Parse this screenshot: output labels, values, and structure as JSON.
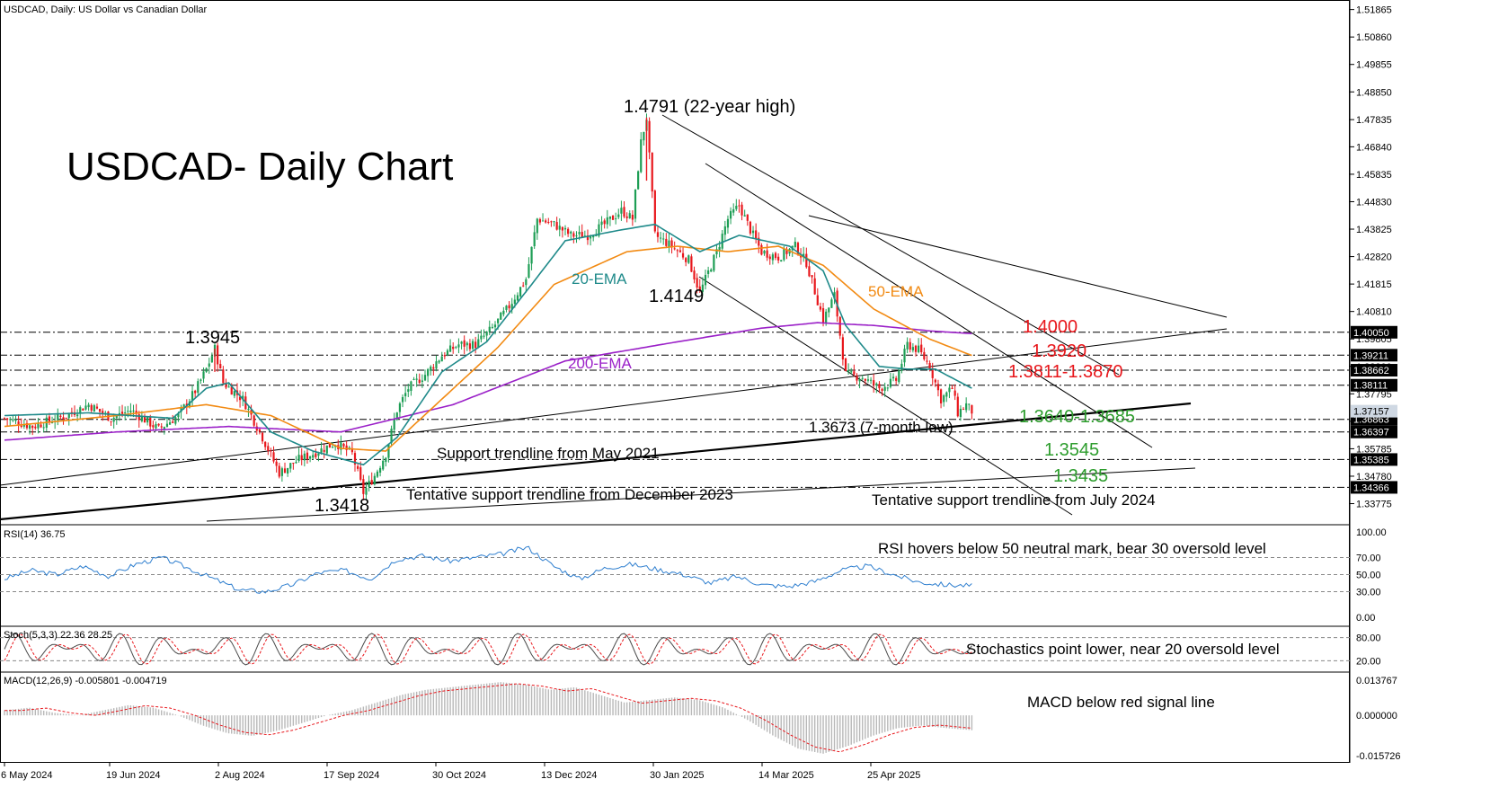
{
  "colors": {
    "bull": "#1e9e55",
    "bear": "#e8171c",
    "ema20": "#1f8a8a",
    "ema50": "#f28a12",
    "ema200": "#9b21c8",
    "rsi": "#2f7fcf",
    "stoch_main": "#4a4a4a",
    "stoch_signal": "#e8171c",
    "macd_hist": "#b8b8b8",
    "macd_signal": "#e8171c",
    "resistance_text": "#e8171c",
    "support_text": "#2d9d2d",
    "price_tag_bg": "#000000",
    "current_price_bg": "#cfd8e3"
  },
  "header": {
    "symbol_line": "USDCAD, Daily:  US Dollar vs Canadian Dollar",
    "chart_title": "USDCAD- Daily Chart"
  },
  "chart_data": [
    {
      "type": "candlestick",
      "title": "USDCAD- Daily Chart",
      "subtitle": "USDCAD, Daily:  US Dollar vs Canadian Dollar",
      "y_ticks": [
        "1.51865",
        "1.50860",
        "1.49855",
        "1.48850",
        "1.47835",
        "1.46840",
        "1.45835",
        "1.44830",
        "1.43825",
        "1.42820",
        "1.41815",
        "1.40810",
        "1.39805",
        "1.38800",
        "1.37795",
        "1.36790",
        "1.35785",
        "1.34780",
        "1.33775"
      ],
      "ylim": [
        1.332,
        1.5205
      ],
      "x_ticks": [
        "6 May 2024",
        "19 Jun 2024",
        "2 Aug 2024",
        "17 Sep 2024",
        "30 Oct 2024",
        "13 Dec 2024",
        "30 Jan 2025",
        "14 Mar 2025",
        "25 Apr 2025"
      ],
      "price_path": [
        [
          0,
          1.369
        ],
        [
          10,
          1.366
        ],
        [
          22,
          1.37
        ],
        [
          30,
          1.374
        ],
        [
          38,
          1.369
        ],
        [
          45,
          1.372
        ],
        [
          55,
          1.365
        ],
        [
          62,
          1.37
        ],
        [
          68,
          1.379
        ],
        [
          72,
          1.387
        ],
        [
          75,
          1.3945
        ],
        [
          78,
          1.382
        ],
        [
          85,
          1.376
        ],
        [
          92,
          1.362
        ],
        [
          98,
          1.349
        ],
        [
          105,
          1.354
        ],
        [
          110,
          1.356
        ],
        [
          118,
          1.36
        ],
        [
          124,
          1.356
        ],
        [
          128,
          1.3418
        ],
        [
          132,
          1.348
        ],
        [
          136,
          1.356
        ],
        [
          140,
          1.372
        ],
        [
          144,
          1.38
        ],
        [
          150,
          1.385
        ],
        [
          156,
          1.392
        ],
        [
          162,
          1.396
        ],
        [
          168,
          1.396
        ],
        [
          174,
          1.402
        ],
        [
          180,
          1.41
        ],
        [
          186,
          1.42
        ],
        [
          190,
          1.442
        ],
        [
          196,
          1.44
        ],
        [
          202,
          1.436
        ],
        [
          208,
          1.436
        ],
        [
          214,
          1.44
        ],
        [
          220,
          1.445
        ],
        [
          224,
          1.442
        ],
        [
          227,
          1.47
        ],
        [
          229,
          1.4791
        ],
        [
          232,
          1.436
        ],
        [
          238,
          1.432
        ],
        [
          244,
          1.427
        ],
        [
          248,
          1.4149
        ],
        [
          254,
          1.43
        ],
        [
          258,
          1.442
        ],
        [
          262,
          1.447
        ],
        [
          266,
          1.438
        ],
        [
          270,
          1.43
        ],
        [
          276,
          1.428
        ],
        [
          282,
          1.432
        ],
        [
          286,
          1.426
        ],
        [
          292,
          1.405
        ],
        [
          296,
          1.414
        ],
        [
          300,
          1.385
        ],
        [
          306,
          1.384
        ],
        [
          312,
          1.38
        ],
        [
          318,
          1.383
        ],
        [
          322,
          1.396
        ],
        [
          326,
          1.394
        ],
        [
          330,
          1.388
        ],
        [
          334,
          1.376
        ],
        [
          338,
          1.38
        ],
        [
          340,
          1.371
        ],
        [
          343,
          1.374
        ],
        [
          345,
          1.3716
        ]
      ],
      "ema20_path": [
        [
          0,
          1.37
        ],
        [
          30,
          1.371
        ],
        [
          60,
          1.369
        ],
        [
          72,
          1.38
        ],
        [
          80,
          1.382
        ],
        [
          95,
          1.364
        ],
        [
          110,
          1.357
        ],
        [
          128,
          1.352
        ],
        [
          140,
          1.362
        ],
        [
          156,
          1.386
        ],
        [
          172,
          1.397
        ],
        [
          188,
          1.418
        ],
        [
          200,
          1.434
        ],
        [
          220,
          1.438
        ],
        [
          232,
          1.44
        ],
        [
          248,
          1.43
        ],
        [
          262,
          1.436
        ],
        [
          280,
          1.432
        ],
        [
          292,
          1.423
        ],
        [
          300,
          1.403
        ],
        [
          312,
          1.388
        ],
        [
          322,
          1.387
        ],
        [
          332,
          1.387
        ],
        [
          345,
          1.38
        ]
      ],
      "ema50_path": [
        [
          0,
          1.366
        ],
        [
          40,
          1.37
        ],
        [
          72,
          1.374
        ],
        [
          95,
          1.37
        ],
        [
          120,
          1.358
        ],
        [
          136,
          1.357
        ],
        [
          156,
          1.376
        ],
        [
          176,
          1.395
        ],
        [
          196,
          1.418
        ],
        [
          222,
          1.43
        ],
        [
          240,
          1.432
        ],
        [
          258,
          1.43
        ],
        [
          276,
          1.432
        ],
        [
          292,
          1.425
        ],
        [
          310,
          1.409
        ],
        [
          330,
          1.398
        ],
        [
          345,
          1.392
        ]
      ],
      "ema200_path": [
        [
          0,
          1.361
        ],
        [
          40,
          1.364
        ],
        [
          80,
          1.366
        ],
        [
          120,
          1.364
        ],
        [
          160,
          1.374
        ],
        [
          200,
          1.39
        ],
        [
          240,
          1.397
        ],
        [
          270,
          1.402
        ],
        [
          290,
          1.404
        ],
        [
          310,
          1.403
        ],
        [
          330,
          1.401
        ],
        [
          345,
          1.4
        ]
      ],
      "series": [
        {
          "name": "20-EMA"
        },
        {
          "name": "50-EMA"
        },
        {
          "name": "200-EMA"
        }
      ],
      "levels": [
        {
          "label": "1.4000",
          "value": 1.4005,
          "tag": "1.40050",
          "kind": "resistance"
        },
        {
          "label": "1.3920",
          "value": 1.3921,
          "tag": "1.39211",
          "kind": "resistance"
        },
        {
          "label": "1.3811-1.3870",
          "value": 1.3866,
          "tag": "1.38662",
          "kind": "resistance"
        },
        {
          "label": "",
          "value": 1.3811,
          "tag": "1.38111",
          "kind": "resistance"
        },
        {
          "label": "1.3640-1.3685",
          "value": 1.3686,
          "tag": "1.36863",
          "kind": "support"
        },
        {
          "label": "",
          "value": 1.364,
          "tag": "1.36397",
          "kind": "support"
        },
        {
          "label": "1.3545",
          "value": 1.3539,
          "tag": "1.35385",
          "kind": "support"
        },
        {
          "label": "1.3435",
          "value": 1.3437,
          "tag": "1.34366",
          "kind": "support"
        }
      ],
      "current_price_tag": "1.37157",
      "annotations": [
        "1.4791 (22-year high)",
        "1.3945",
        "1.4149",
        "1.3418",
        "1.3673 (7-month low)",
        "Support trendline from May 2021",
        "Tentative support trendline from December 2023",
        "Tentative support trendline from July 2024"
      ]
    },
    {
      "type": "line",
      "title": "RSI(14) 36.75",
      "ylim": [
        0,
        100
      ],
      "y_ticks": [
        "100.00",
        "70.00",
        "50.00",
        "30.00",
        "0.00"
      ],
      "values": [
        45,
        55,
        50,
        60,
        48,
        62,
        70,
        58,
        45,
        32,
        30,
        38,
        52,
        55,
        45,
        68,
        72,
        66,
        70,
        74,
        82,
        60,
        45,
        58,
        62,
        56,
        50,
        40,
        48,
        38,
        36,
        42,
        55,
        60,
        50,
        41,
        38,
        37
      ],
      "annotation": "RSI hovers below 50 neutral mark, bear 30 oversold level"
    },
    {
      "type": "line",
      "title": "Stoch(5,3,3) 22.36 28.25",
      "ylim": [
        0,
        100
      ],
      "y_ticks": [
        "80.00",
        "20.00"
      ],
      "annotation": "Stochastics point lower, near 20 oversold level"
    },
    {
      "type": "bar",
      "title": "MACD(12,26,9) -0.005801 -0.004719",
      "y_ticks": [
        "0.013767",
        "0.000000",
        "-0.015726"
      ],
      "ylim": [
        -0.0175,
        0.0155
      ],
      "values": [
        0.002,
        0.003,
        0.001,
        0.0,
        0.002,
        0.004,
        0.003,
        0.0,
        -0.004,
        -0.007,
        -0.008,
        -0.006,
        -0.003,
        0.0,
        0.002,
        0.005,
        0.008,
        0.01,
        0.011,
        0.012,
        0.013,
        0.012,
        0.01,
        0.011,
        0.008,
        0.005,
        0.006,
        0.007,
        0.006,
        0.003,
        -0.002,
        -0.008,
        -0.013,
        -0.015,
        -0.012,
        -0.008,
        -0.005,
        -0.004,
        -0.005,
        -0.0058
      ],
      "annotation": "MACD below red signal line"
    }
  ]
}
